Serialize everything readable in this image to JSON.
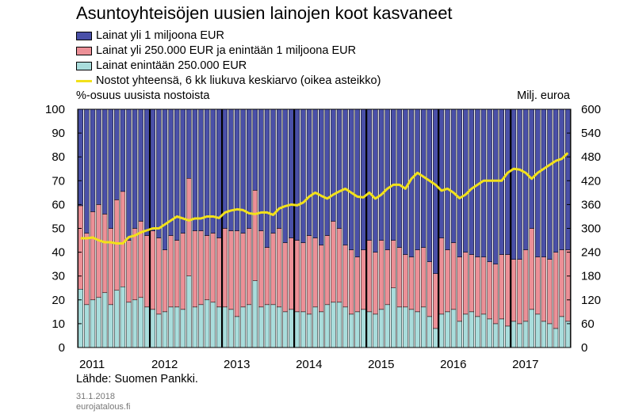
{
  "title": "Asuntoyhteisöjen uusien lainojen koot kasvaneet",
  "legend": [
    {
      "label": "Lainat yli 1 miljoona EUR",
      "color": "#4a50a8",
      "kind": "box"
    },
    {
      "label": "Lainat yli 250.000 EUR ja enintään 1 miljoona EUR",
      "color": "#ec9097",
      "kind": "box"
    },
    {
      "label": "Lainat enintään 250.000 EUR",
      "color": "#a9dddc",
      "kind": "box"
    },
    {
      "label": "Nostot yhteensä, 6 kk liukuva keskiarvo (oikea asteikko)",
      "color": "#f2e11a",
      "kind": "line"
    }
  ],
  "left_axis_label": "%-osuus uusista nostoista",
  "right_axis_label": "Milj. euroa",
  "source": "Lähde: Suomen Pankki.",
  "date": "31.1.2018",
  "site": "eurojatalous.fi",
  "colors": {
    "large": "#4a50a8",
    "medium": "#ec9097",
    "small": "#a9dddc",
    "line": "#f2e11a"
  },
  "chart_data": {
    "type": "bar",
    "stacked": true,
    "x_tick_labels": [
      "2011",
      "2012",
      "2013",
      "2014",
      "2015",
      "2016",
      "2017"
    ],
    "yleft_ticks": [
      "0",
      "10",
      "20",
      "30",
      "40",
      "50",
      "60",
      "70",
      "80",
      "90",
      "100"
    ],
    "yright_ticks": [
      "0",
      "60",
      "120",
      "180",
      "240",
      "300",
      "360",
      "420",
      "480",
      "540",
      "600"
    ],
    "ylim_left": [
      0,
      100
    ],
    "ylim_right": [
      0,
      600
    ],
    "series": [
      {
        "name": "Lainat enintään 250.000 EUR",
        "values": [
          24.5,
          18,
          20,
          21,
          23,
          18,
          24,
          25.5,
          19,
          20,
          21,
          17,
          16,
          14,
          15,
          17,
          17,
          16,
          30,
          17,
          18,
          20,
          19,
          17,
          17,
          16,
          13,
          17,
          18,
          28,
          17,
          18,
          18,
          17,
          15,
          16,
          15,
          15,
          14,
          17,
          15,
          18,
          19,
          19,
          17,
          14,
          15,
          16,
          15,
          14,
          16,
          18,
          25,
          17,
          17,
          16,
          15,
          17,
          13,
          8,
          14,
          15,
          16,
          11,
          14,
          15,
          13,
          14,
          12,
          10,
          12,
          9,
          11,
          10,
          11,
          16,
          14,
          11,
          10,
          8,
          13,
          11
        ]
      },
      {
        "name": "Lainat yli 250.000 EUR ja enintään 1 miljoona EUR",
        "values": [
          35,
          30,
          37,
          39,
          33,
          32,
          38,
          40,
          26,
          30,
          32,
          30,
          33,
          32,
          26,
          30,
          28,
          32,
          41,
          32,
          31,
          27,
          29,
          29,
          33,
          33,
          36,
          31,
          32,
          38,
          32,
          24,
          30,
          33,
          29,
          30,
          30,
          29,
          33,
          29,
          28,
          29,
          34,
          31,
          26,
          27,
          23,
          25,
          30,
          26,
          29,
          23,
          20,
          25,
          22,
          22,
          26,
          25,
          23,
          23,
          32,
          26,
          28,
          27,
          26,
          24,
          25,
          24,
          24,
          25,
          27,
          30,
          26,
          27,
          30,
          34,
          24,
          27,
          27,
          32,
          28,
          30
        ]
      },
      {
        "name": "Lainat yli 1 miljoona EUR",
        "values": [
          40.5,
          52,
          43,
          40,
          44,
          50,
          38,
          34.5,
          55,
          50,
          47,
          53,
          51,
          54,
          59,
          53,
          55,
          52,
          29,
          51,
          51,
          53,
          52,
          54,
          50,
          51,
          51,
          52,
          50,
          34,
          51,
          58,
          52,
          50,
          56,
          54,
          55,
          56,
          53,
          54,
          57,
          53,
          47,
          50,
          57,
          59,
          62,
          59,
          55,
          60,
          55,
          59,
          55,
          58,
          61,
          62,
          59,
          58,
          64,
          69,
          54,
          59,
          56,
          62,
          60,
          61,
          62,
          62,
          64,
          65,
          61,
          61,
          63,
          63,
          59,
          50,
          62,
          62,
          63,
          60,
          59,
          59
        ]
      },
      {
        "name": "Nostot yhteensä, 6 kk liukuva keskiarvo (oikea asteikko)",
        "axis": "right",
        "values": [
          275,
          275,
          277,
          270,
          265,
          265,
          262,
          262,
          278,
          282,
          290,
          295,
          300,
          300,
          310,
          320,
          330,
          325,
          320,
          325,
          325,
          330,
          330,
          326,
          340,
          345,
          348,
          346,
          338,
          336,
          340,
          340,
          334,
          350,
          356,
          360,
          358,
          365,
          380,
          390,
          382,
          375,
          385,
          393,
          400,
          390,
          380,
          378,
          390,
          375,
          385,
          400,
          410,
          410,
          400,
          425,
          440,
          430,
          420,
          410,
          395,
          400,
          390,
          376,
          385,
          400,
          410,
          420,
          420,
          420,
          420,
          440,
          450,
          448,
          440,
          425,
          440,
          450,
          460,
          470,
          475,
          490
        ]
      }
    ]
  }
}
